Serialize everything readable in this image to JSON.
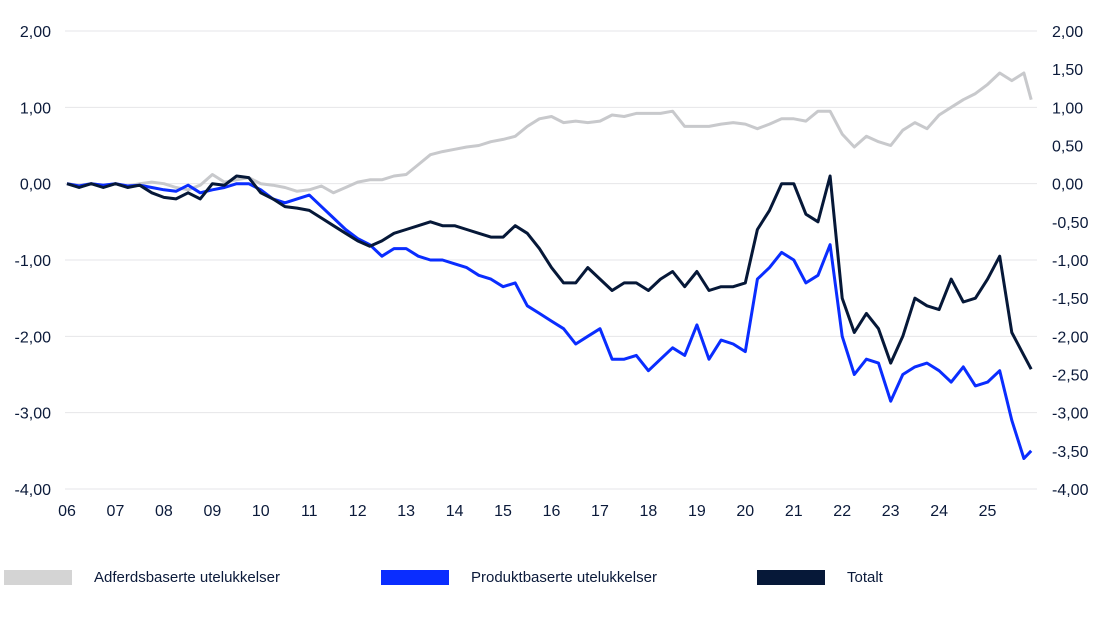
{
  "chart_data": {
    "type": "line",
    "title": "",
    "xlabel": "",
    "ylabel": "",
    "ylim": [
      -4.0,
      2.0
    ],
    "y2lim": [
      -4.0,
      2.0
    ],
    "grid": true,
    "legend_position": "bottom",
    "x_tick_labels": [
      "06",
      "07",
      "08",
      "09",
      "10",
      "11",
      "12",
      "13",
      "14",
      "15",
      "16",
      "17",
      "18",
      "19",
      "20",
      "21",
      "22",
      "23",
      "24",
      "25"
    ],
    "y_left_tick_labels": [
      "2,00",
      "1,00",
      "0,00",
      "-1,00",
      "-2,00",
      "-3,00",
      "-4,00"
    ],
    "y_right_tick_labels": [
      "2,00",
      "1,50",
      "1,00",
      "0,50",
      "0,00",
      "-0,50",
      "-1,00",
      "-1,50",
      "-2,00",
      "-2,50",
      "-3,00",
      "-3,50",
      "-4,00"
    ],
    "x": [
      2006.0,
      2006.25,
      2006.5,
      2006.75,
      2007.0,
      2007.25,
      2007.5,
      2007.75,
      2008.0,
      2008.25,
      2008.5,
      2008.75,
      2009.0,
      2009.25,
      2009.5,
      2009.75,
      2010.0,
      2010.25,
      2010.5,
      2010.75,
      2011.0,
      2011.25,
      2011.5,
      2011.75,
      2012.0,
      2012.25,
      2012.5,
      2012.75,
      2013.0,
      2013.25,
      2013.5,
      2013.75,
      2014.0,
      2014.25,
      2014.5,
      2014.75,
      2015.0,
      2015.25,
      2015.5,
      2015.75,
      2016.0,
      2016.25,
      2016.5,
      2016.75,
      2017.0,
      2017.25,
      2017.5,
      2017.75,
      2018.0,
      2018.25,
      2018.5,
      2018.75,
      2019.0,
      2019.25,
      2019.5,
      2019.75,
      2020.0,
      2020.25,
      2020.5,
      2020.75,
      2021.0,
      2021.25,
      2021.5,
      2021.75,
      2022.0,
      2022.25,
      2022.5,
      2022.75,
      2023.0,
      2023.25,
      2023.5,
      2023.75,
      2024.0,
      2024.25,
      2024.5,
      2024.75,
      2025.0,
      2025.25,
      2025.5,
      2025.75,
      2025.9
    ],
    "series": [
      {
        "name": "Adferdsbaserte utelukkelser",
        "color": "#c8c9cc",
        "values": [
          0.0,
          -0.02,
          0.0,
          -0.02,
          0.0,
          -0.03,
          0.0,
          0.02,
          0.0,
          -0.05,
          -0.08,
          -0.02,
          0.12,
          0.02,
          0.05,
          0.08,
          0.0,
          -0.02,
          -0.05,
          -0.1,
          -0.08,
          -0.03,
          -0.12,
          -0.05,
          0.02,
          0.05,
          0.05,
          0.1,
          0.12,
          0.25,
          0.38,
          0.42,
          0.45,
          0.48,
          0.5,
          0.55,
          0.58,
          0.62,
          0.75,
          0.85,
          0.88,
          0.8,
          0.82,
          0.8,
          0.82,
          0.9,
          0.88,
          0.92,
          0.92,
          0.92,
          0.95,
          0.75,
          0.75,
          0.75,
          0.78,
          0.8,
          0.78,
          0.72,
          0.78,
          0.85,
          0.85,
          0.82,
          0.95,
          0.95,
          0.65,
          0.48,
          0.62,
          0.55,
          0.5,
          0.7,
          0.8,
          0.72,
          0.9,
          1.0,
          1.1,
          1.18,
          1.3,
          1.45,
          1.35,
          1.45,
          1.1
        ]
      },
      {
        "name": "Produktbaserte utelukkelser",
        "color": "#0a2dff",
        "values": [
          0.0,
          -0.03,
          0.0,
          -0.02,
          0.0,
          -0.03,
          -0.02,
          -0.05,
          -0.08,
          -0.1,
          -0.02,
          -0.12,
          -0.08,
          -0.05,
          0.0,
          0.0,
          -0.08,
          -0.2,
          -0.25,
          -0.2,
          -0.15,
          -0.3,
          -0.45,
          -0.6,
          -0.72,
          -0.8,
          -0.95,
          -0.85,
          -0.85,
          -0.95,
          -1.0,
          -1.0,
          -1.05,
          -1.1,
          -1.2,
          -1.25,
          -1.35,
          -1.3,
          -1.6,
          -1.7,
          -1.8,
          -1.9,
          -2.1,
          -2.0,
          -1.9,
          -2.3,
          -2.3,
          -2.25,
          -2.45,
          -2.3,
          -2.15,
          -2.25,
          -1.85,
          -2.3,
          -2.05,
          -2.1,
          -2.2,
          -1.25,
          -1.1,
          -0.9,
          -1.0,
          -1.3,
          -1.2,
          -0.8,
          -2.0,
          -2.5,
          -2.3,
          -2.35,
          -2.85,
          -2.5,
          -2.4,
          -2.35,
          -2.45,
          -2.6,
          -2.4,
          -2.65,
          -2.6,
          -2.45,
          -3.1,
          -3.6,
          -3.5
        ]
      },
      {
        "name": "Totalt",
        "color": "#061838",
        "values": [
          0.0,
          -0.05,
          0.0,
          -0.05,
          0.0,
          -0.05,
          -0.02,
          -0.12,
          -0.18,
          -0.2,
          -0.12,
          -0.2,
          0.0,
          -0.02,
          0.1,
          0.08,
          -0.12,
          -0.2,
          -0.3,
          -0.32,
          -0.35,
          -0.45,
          -0.55,
          -0.65,
          -0.75,
          -0.82,
          -0.75,
          -0.65,
          -0.6,
          -0.55,
          -0.5,
          -0.55,
          -0.55,
          -0.6,
          -0.65,
          -0.7,
          -0.7,
          -0.55,
          -0.65,
          -0.85,
          -1.1,
          -1.3,
          -1.3,
          -1.1,
          -1.25,
          -1.4,
          -1.3,
          -1.3,
          -1.4,
          -1.25,
          -1.15,
          -1.35,
          -1.15,
          -1.4,
          -1.35,
          -1.35,
          -1.3,
          -0.6,
          -0.35,
          0.0,
          0.0,
          -0.4,
          -0.5,
          0.1,
          -1.5,
          -1.95,
          -1.7,
          -1.9,
          -2.35,
          -2.0,
          -1.5,
          -1.6,
          -1.65,
          -1.25,
          -1.55,
          -1.5,
          -1.25,
          -0.95,
          -1.95,
          -2.25,
          -2.43
        ]
      }
    ]
  },
  "legend": {
    "items": [
      {
        "label": "Adferdsbaserte utelukkelser",
        "color": "#d4d4d4"
      },
      {
        "label": "Produktbaserte utelukkelser",
        "color": "#0a2dff"
      },
      {
        "label": "Totalt",
        "color": "#061838"
      }
    ]
  }
}
